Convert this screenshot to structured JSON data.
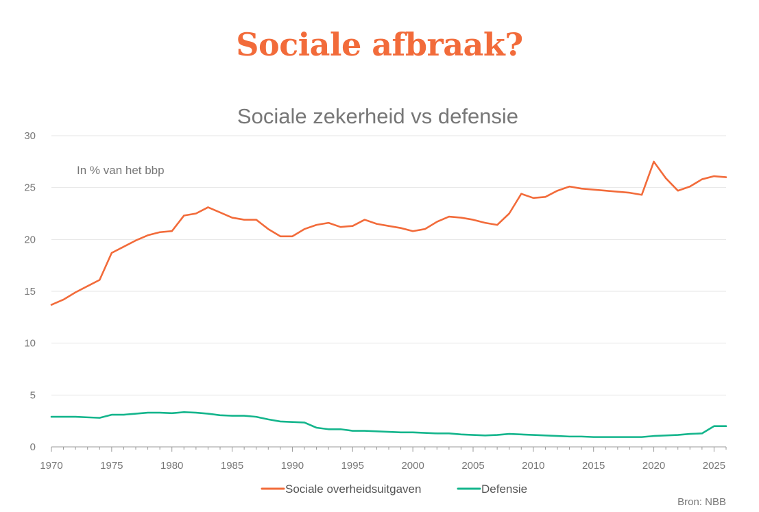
{
  "headline": "Sociale afbraak?",
  "source": "Bron: NBB",
  "colors": {
    "headline": "#f26b3a",
    "social": "#f26b3a",
    "defense": "#14b58c",
    "grid": "#e6e6e6",
    "axis_text": "#777777",
    "title_text": "#777777",
    "annotation_text": "#777777"
  },
  "chart_data": {
    "type": "line",
    "title": "Sociale zekerheid vs defensie",
    "annotation": "In % van het bbp",
    "xlim": [
      1970,
      2026
    ],
    "ylim": [
      0,
      30
    ],
    "yticks": [
      0,
      5,
      10,
      15,
      20,
      25,
      30
    ],
    "xticks": [
      1970,
      1975,
      1980,
      1985,
      1990,
      1995,
      2000,
      2005,
      2010,
      2015,
      2020,
      2025
    ],
    "grid": true,
    "legend_position": "bottom",
    "x": [
      1970,
      1971,
      1972,
      1973,
      1974,
      1975,
      1976,
      1977,
      1978,
      1979,
      1980,
      1981,
      1982,
      1983,
      1984,
      1985,
      1986,
      1987,
      1988,
      1989,
      1990,
      1991,
      1992,
      1993,
      1994,
      1995,
      1996,
      1997,
      1998,
      1999,
      2000,
      2001,
      2002,
      2003,
      2004,
      2005,
      2006,
      2007,
      2008,
      2009,
      2010,
      2011,
      2012,
      2013,
      2014,
      2015,
      2016,
      2017,
      2018,
      2019,
      2020,
      2021,
      2022,
      2023,
      2024,
      2025,
      2026
    ],
    "series": [
      {
        "name": "Sociale overheidsuitgaven",
        "values": [
          13.7,
          14.2,
          14.9,
          15.5,
          16.1,
          18.7,
          19.3,
          19.9,
          20.4,
          20.7,
          20.8,
          22.3,
          22.5,
          23.1,
          22.6,
          22.1,
          21.9,
          21.9,
          21.0,
          20.3,
          20.3,
          21.0,
          21.4,
          21.6,
          21.2,
          21.3,
          21.9,
          21.5,
          21.3,
          21.1,
          20.8,
          21.0,
          21.7,
          22.2,
          22.1,
          21.9,
          21.6,
          21.4,
          22.5,
          24.4,
          24.0,
          24.1,
          24.7,
          25.1,
          24.9,
          24.8,
          24.7,
          24.6,
          24.5,
          24.3,
          27.5,
          25.9,
          24.7,
          25.1,
          25.8,
          26.1,
          26.0
        ]
      },
      {
        "name": "Defensie",
        "values": [
          2.9,
          2.9,
          2.9,
          2.85,
          2.8,
          3.1,
          3.1,
          3.2,
          3.3,
          3.3,
          3.25,
          3.35,
          3.3,
          3.2,
          3.05,
          3.0,
          3.0,
          2.9,
          2.65,
          2.45,
          2.4,
          2.35,
          1.85,
          1.7,
          1.7,
          1.55,
          1.55,
          1.5,
          1.45,
          1.4,
          1.4,
          1.35,
          1.3,
          1.3,
          1.2,
          1.15,
          1.1,
          1.15,
          1.25,
          1.2,
          1.15,
          1.1,
          1.05,
          1.0,
          1.0,
          0.95,
          0.95,
          0.95,
          0.95,
          0.95,
          1.05,
          1.1,
          1.15,
          1.25,
          1.3,
          2.0,
          2.0
        ]
      }
    ]
  }
}
